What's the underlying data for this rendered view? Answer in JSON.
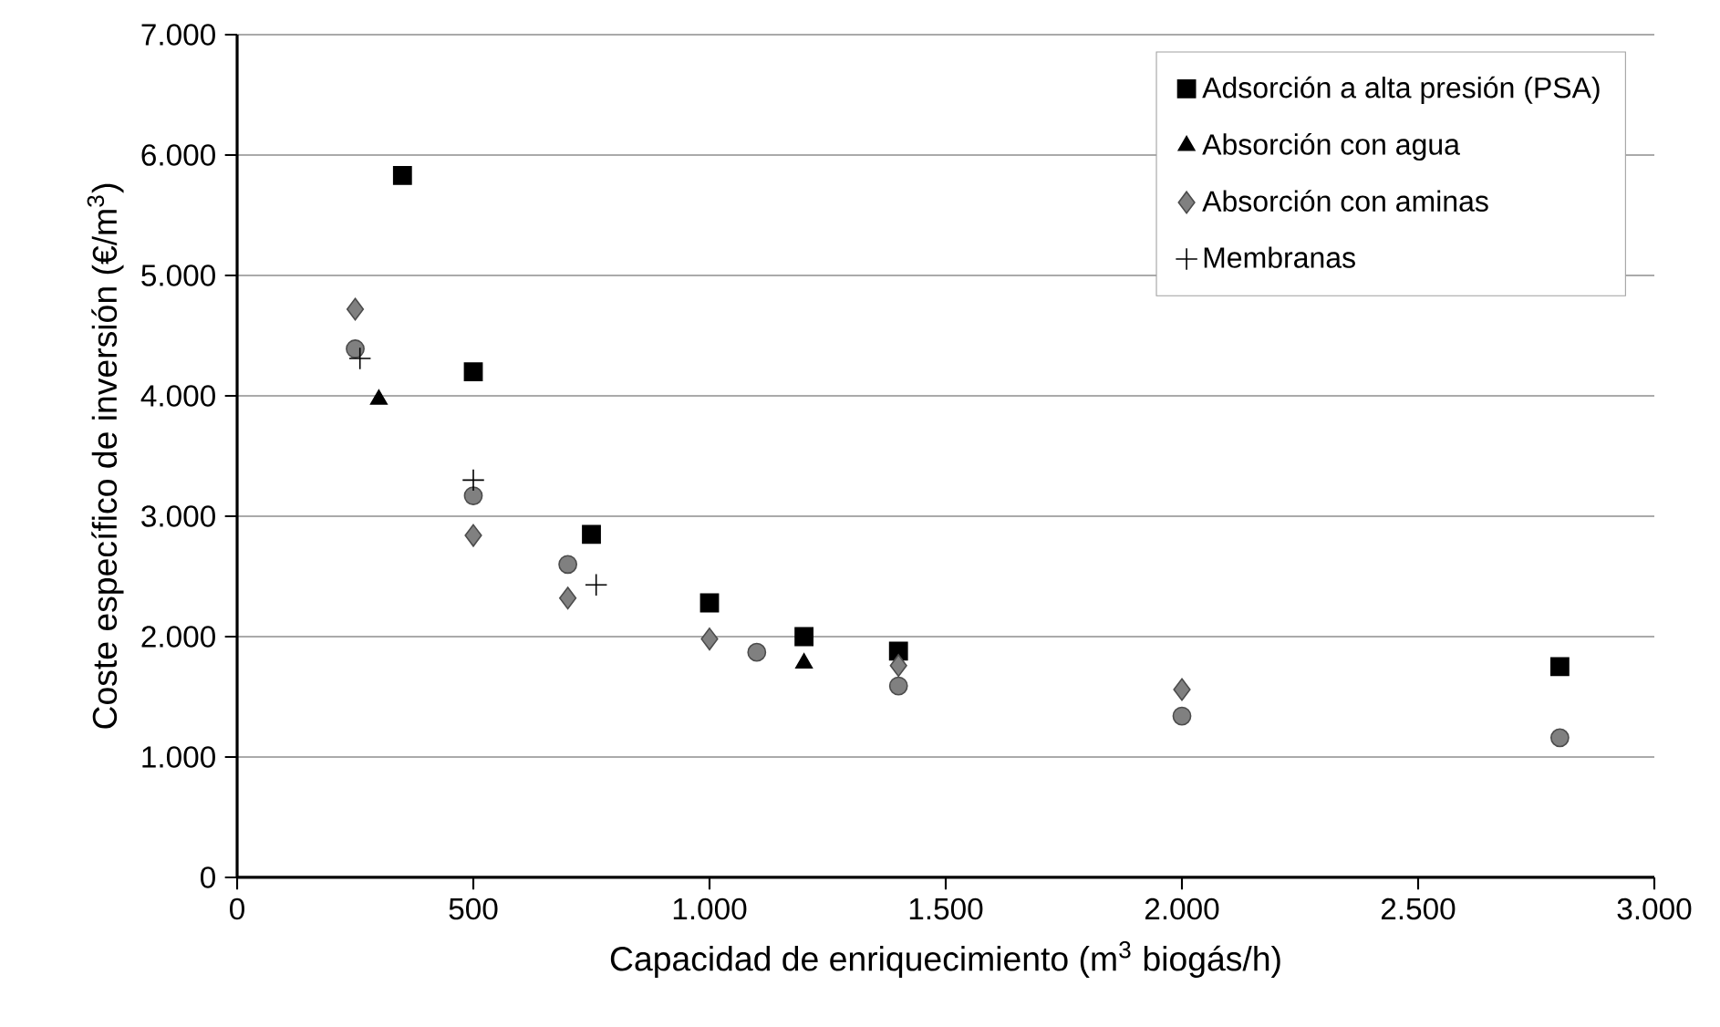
{
  "chart_data": {
    "type": "scatter",
    "xlabel": "Capacidad de enriquecimiento (m$^{3}$ biogás/h)",
    "ylabel": "Coste específico de inversión (€/m$^{3}$)",
    "xlim": [
      0,
      3000
    ],
    "ylim": [
      0,
      7000
    ],
    "xticks": [
      0,
      500,
      {
        "value": 1000,
        "label": "1.000"
      },
      {
        "value": 1500,
        "label": "1.500"
      },
      {
        "value": 2000,
        "label": "2.000"
      },
      {
        "value": 2500,
        "label": "2.500"
      },
      {
        "value": 3000,
        "label": "3.000"
      }
    ],
    "yticks": [
      0,
      {
        "value": 1000,
        "label": "1.000"
      },
      {
        "value": 2000,
        "label": "2.000"
      },
      {
        "value": 3000,
        "label": "3.000"
      },
      {
        "value": 4000,
        "label": "4.000"
      },
      {
        "value": 5000,
        "label": "5.000"
      },
      {
        "value": 6000,
        "label": "6.000"
      },
      {
        "value": 7000,
        "label": "7.000"
      }
    ],
    "grid": "y",
    "legend": "top right",
    "series": [
      {
        "name": "Adsorción a alta presión (PSA)",
        "color": "#000000",
        "marker": "square",
        "x": [
          350,
          500,
          750,
          1000,
          1200,
          1400,
          2800
        ],
        "values": [
          5830,
          4200,
          2850,
          2280,
          2000,
          1880,
          1750
        ]
      },
      {
        "name": "Absorción con agua",
        "color": "#000000",
        "marker": "triangle",
        "x": [
          300,
          1200
        ],
        "values": [
          3970,
          1780
        ]
      },
      {
        "color": "#808080",
        "marker": "circle",
        "x": [
          250,
          500,
          700,
          1100,
          1400,
          2000,
          2800
        ],
        "values": [
          4390,
          3170,
          2600,
          1870,
          1590,
          1340,
          1160
        ]
      },
      {
        "name": "Absorción con aminas",
        "color": "#808080",
        "marker": "diamond",
        "x": [
          250,
          500,
          700,
          1000,
          1400,
          2000
        ],
        "values": [
          4720,
          2840,
          2320,
          1980,
          1760,
          1560
        ]
      },
      {
        "name": "Membranas",
        "color": "#000000",
        "marker": "cross",
        "x": [
          260,
          500,
          760
        ],
        "values": [
          4310,
          3300,
          2430
        ]
      }
    ]
  }
}
